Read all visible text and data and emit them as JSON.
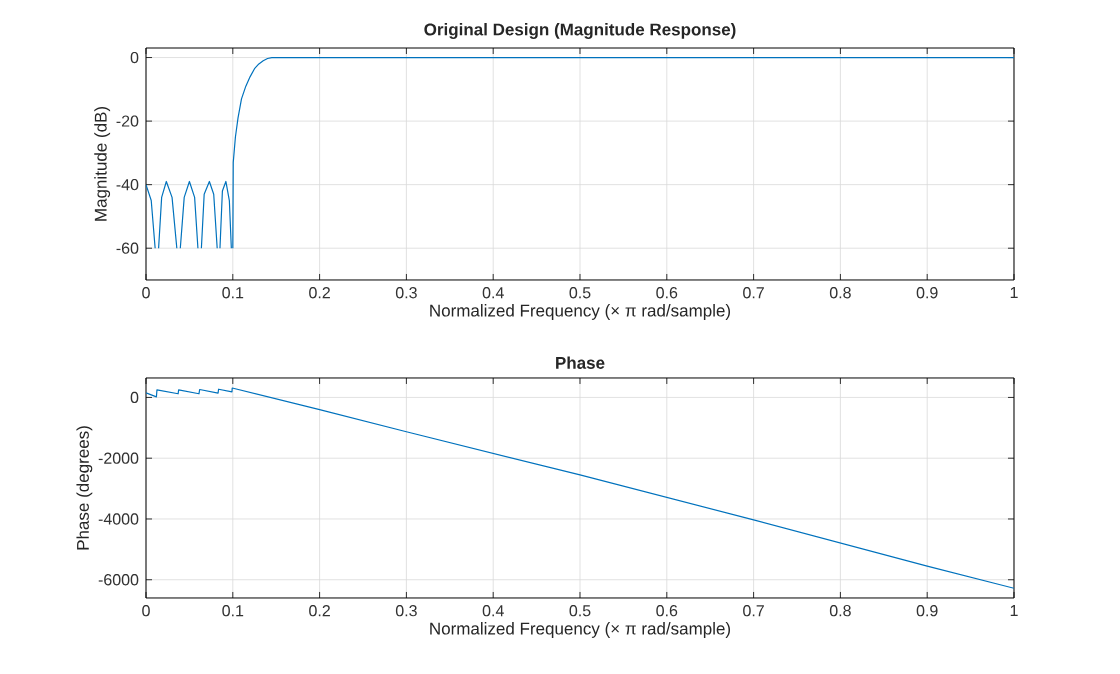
{
  "chart_data": [
    {
      "type": "line",
      "title": "Original Design (Magnitude Response)",
      "xlabel": "Normalized Frequency  (× π rad/sample)",
      "ylabel": "Magnitude (dB)",
      "xlim": [
        0,
        1
      ],
      "ylim": [
        -70,
        3
      ],
      "xticks": [
        0,
        0.1,
        0.2,
        0.3,
        0.4,
        0.5,
        0.6,
        0.7,
        0.8,
        0.9,
        1
      ],
      "yticks": [
        -60,
        -40,
        -20,
        0
      ],
      "grid": true,
      "series": [
        {
          "color": "#0072bd",
          "x": [
            0,
            0.006,
            0.0105,
            0.0126,
            0.0145,
            0.018,
            0.0234,
            0.03,
            0.0355,
            0.0375,
            0.0395,
            0.044,
            0.05,
            0.056,
            0.0598,
            0.0618,
            0.0638,
            0.067,
            0.073,
            0.078,
            0.082,
            0.0836,
            0.0852,
            0.088,
            0.092,
            0.096,
            0.0983,
            0.0993,
            0.1,
            0.1005,
            0.103,
            0.106,
            0.11,
            0.115,
            0.12,
            0.125,
            0.13,
            0.135,
            0.14,
            0.145,
            0.15,
            0.2,
            0.5,
            1
          ],
          "values": [
            -40,
            -45,
            -60,
            null,
            -60,
            -44,
            -39,
            -44,
            -60,
            null,
            -60,
            -44,
            -39,
            -44,
            -60,
            null,
            -60,
            -43,
            -39,
            -43,
            -60,
            null,
            -60,
            -42,
            -39,
            -45,
            -60,
            null,
            -60,
            -33,
            -25,
            -19,
            -13,
            -9,
            -6,
            -3.5,
            -2,
            -1,
            -0.3,
            0,
            0,
            0,
            0,
            0
          ]
        }
      ]
    },
    {
      "type": "line",
      "title": "Phase",
      "xlabel": "Normalized Frequency  (× π rad/sample)",
      "ylabel": "Phase (degrees)",
      "xlim": [
        0,
        1
      ],
      "ylim": [
        -6600,
        640
      ],
      "xticks": [
        0,
        0.1,
        0.2,
        0.3,
        0.4,
        0.5,
        0.6,
        0.7,
        0.8,
        0.9,
        1
      ],
      "yticks": [
        -6000,
        -4000,
        -2000,
        0
      ],
      "grid": true,
      "series": [
        {
          "color": "#0072bd",
          "x": [
            0,
            0.012,
            0.0126,
            0.037,
            0.0376,
            0.061,
            0.0618,
            0.083,
            0.0836,
            0.099,
            0.0993,
            0.2,
            0.3,
            0.5,
            0.7,
            0.9,
            1
          ],
          "values": [
            150,
            20,
            250,
            120,
            250,
            120,
            260,
            140,
            270,
            180,
            310,
            -400,
            -1130,
            -2550,
            -4030,
            -5550,
            -6280
          ]
        }
      ]
    }
  ]
}
